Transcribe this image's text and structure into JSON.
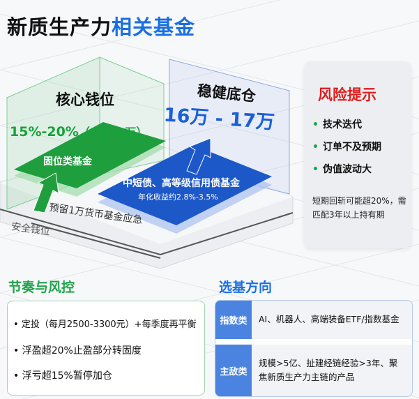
{
  "title": {
    "part1": "新质生产力",
    "part2": "相关基金"
  },
  "core": {
    "label": "核心钱位",
    "ratio": "15%-20%",
    "amount": "（3万 -4万）",
    "fund": "固位类基金"
  },
  "stable": {
    "label": "稳健底仓",
    "amount": "16万 - 17万",
    "fund": "中短债、高等级信用债基金",
    "yield": "年化收益约2.8%-3.5%"
  },
  "safety": {
    "reserve": "预留1万货币基金应急",
    "label": "安全钱位"
  },
  "risk": {
    "title": "风险提示",
    "items": [
      "技术迭代",
      "订单不及预期",
      "伪值波动大"
    ],
    "note": "短期回斩可能超20%，需匹配3年以上持有期"
  },
  "rhythm": {
    "title": "节奏与风控",
    "items": [
      "定投（每月2500-3300元）+每季度再平衡",
      "浮盈超20%止盈部分转固度",
      "浮亏超15%暂停加仓"
    ]
  },
  "selection": {
    "title": "选基方向",
    "rows": [
      {
        "tag": "指数类",
        "text": "AI、机器人、高端装备ETF/指数基金"
      },
      {
        "tag": "主敌类",
        "text": "规模>5亿、扯建经链经验>3年、聚焦新质生产力主链的产品"
      }
    ]
  },
  "colors": {
    "green": "#16a33a",
    "blue": "#1a5fd8",
    "red": "#e01c1c"
  }
}
